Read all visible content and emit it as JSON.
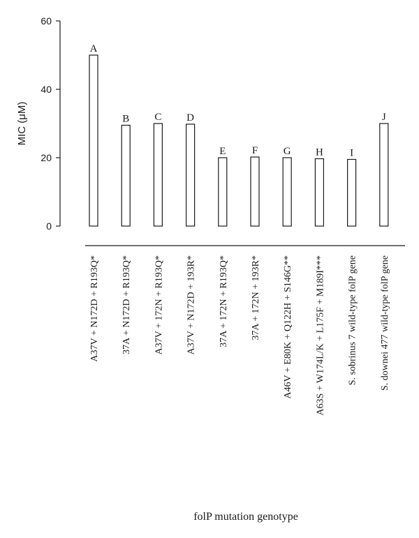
{
  "chart_data": {
    "type": "bar",
    "ylabel": "MIC (μM)",
    "xlabel": "folP mutation genotype",
    "ylim": [
      0,
      60
    ],
    "yticks": [
      0,
      20,
      40,
      60
    ],
    "grid": false,
    "categories": [
      "A37V + N172D + R193Q*",
      "37A + N172D + R193Q*",
      "A37V + 172N + R193Q*",
      "A37V + N172D + 193R*",
      "37A + 172N + R193Q*",
      "37A + 172N + 193R*",
      "A46V + E80K + Q122H + S146G**",
      "A63S + W174L/K + L175F + M189I***",
      "S. sobrinus 7 wild-type folP gene",
      "S. downei 477 wild-type folP gene"
    ],
    "bar_letters": [
      "A",
      "B",
      "C",
      "D",
      "E",
      "F",
      "G",
      "H",
      "I",
      "J"
    ],
    "values": [
      50,
      29.5,
      30,
      29.8,
      20,
      20.2,
      20,
      19.7,
      19.5,
      30
    ]
  }
}
